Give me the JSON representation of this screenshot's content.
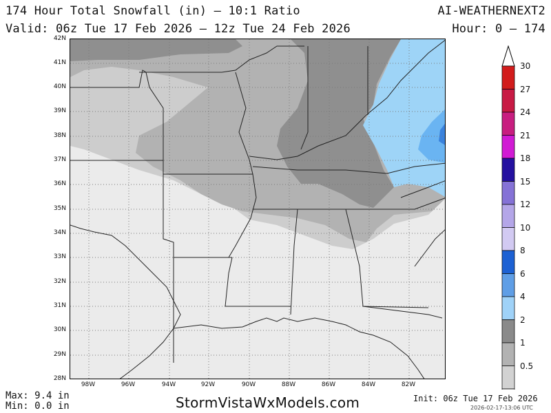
{
  "header": {
    "title": "174 Hour Total Snowfall (in) – 10:1 Ratio",
    "valid": "Valid: 06z Tue 17 Feb 2026 – 12z Tue 24 Feb 2026",
    "model": "AI-WEATHERNEXT2",
    "hours": "Hour: 0 – 174"
  },
  "map": {
    "lat_labels": [
      "42N",
      "41N",
      "40N",
      "39N",
      "38N",
      "37N",
      "36N",
      "35N",
      "34N",
      "33N",
      "32N",
      "31N",
      "30N",
      "29N",
      "28N"
    ],
    "lon_labels": [
      "98W",
      "96W",
      "94W",
      "92W",
      "90W",
      "88W",
      "86W",
      "84W",
      "82W"
    ],
    "colors": {
      "snow_0_5": "#ebebeb",
      "snow_1": "#cdcdcd",
      "snow_2": "#b2b2b2",
      "snow_4": "#8f8f8f",
      "snow_6": "#9ed4f7",
      "snow_8": "#6ab4f2",
      "snow_10": "#3a82dd",
      "border": "#222222",
      "grid": "#7a7a7a"
    }
  },
  "colorbar": {
    "levels": [
      {
        "label": "30",
        "color": "#d21c1c"
      },
      {
        "label": "27",
        "color": "#c81a44"
      },
      {
        "label": "24",
        "color": "#c81e80"
      },
      {
        "label": "21",
        "color": "#d11bd4"
      },
      {
        "label": "18",
        "color": "#2410a0"
      },
      {
        "label": "15",
        "color": "#8572d6"
      },
      {
        "label": "12",
        "color": "#b4a6e8"
      },
      {
        "label": "10",
        "color": "#d2caf2"
      },
      {
        "label": "8",
        "color": "#1d61d3"
      },
      {
        "label": "6",
        "color": "#5f9ee6"
      },
      {
        "label": "4",
        "color": "#9fd2f8"
      },
      {
        "label": "2",
        "color": "#8a8a8a"
      },
      {
        "label": "1",
        "color": "#b2b2b2"
      },
      {
        "label": "0.5",
        "color": "#d2d2d2"
      },
      {
        "label": "",
        "color": "#ececec"
      }
    ]
  },
  "footer": {
    "max": "Max: 9.4 in",
    "min": "Min: 0.0 in",
    "site": "StormVistaWxModels.com",
    "init": "Init: 06z Tue 17 Feb 2026",
    "stamp": "2026-02-17-13:06 UTC"
  }
}
